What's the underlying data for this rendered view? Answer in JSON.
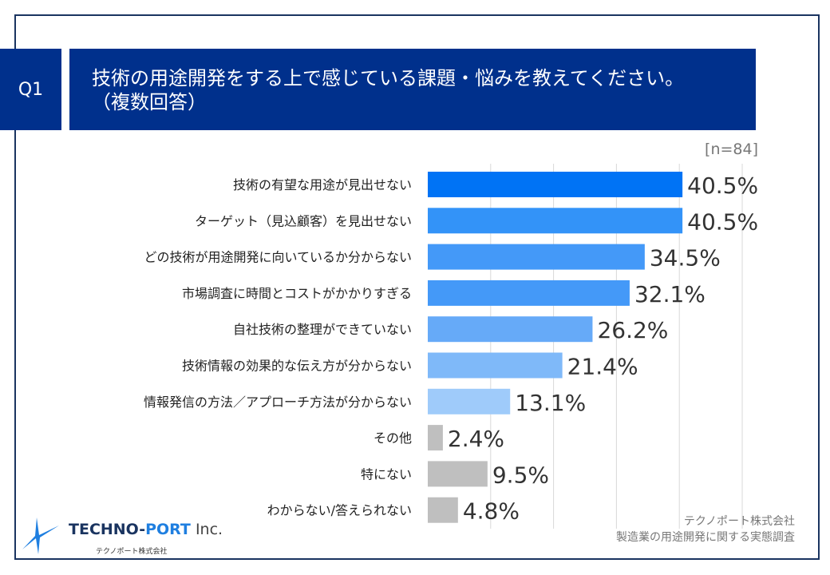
{
  "header": {
    "q_label": "Q1",
    "title_line1": "技術の用途開発をする上で感じている課題・悩みを教えてください。",
    "title_line2": "（複数回答）",
    "sample": "[n=84]"
  },
  "chart_data": {
    "type": "bar",
    "orientation": "horizontal",
    "xlim": [
      0,
      50
    ],
    "grid": true,
    "categories": [
      "技術の有望な用途が見出せない",
      "ターゲット（見込顧客）を見出せない",
      "どの技術が用途開発に向いているか分からない",
      "市場調査に時間とコストがかかりすぎる",
      "自社技術の整理ができていない",
      "技術情報の効果的な伝え方が分からない",
      "情報発信の方法／アプローチ方法が分からない",
      "その他",
      "特にない",
      "わからない/答えられない"
    ],
    "values": [
      40.5,
      40.5,
      34.5,
      32.1,
      26.2,
      21.4,
      13.1,
      2.4,
      9.5,
      4.8
    ],
    "labels": [
      "40.5%",
      "40.5%",
      "34.5%",
      "32.1%",
      "26.2%",
      "21.4%",
      "13.1%",
      "2.4%",
      "9.5%",
      "4.8%"
    ],
    "colors": [
      "#0073f5",
      "#3393f8",
      "#4499f8",
      "#4499f8",
      "#66aaf8",
      "#7fb9f9",
      "#9fcbfa",
      "#bfbfbf",
      "#bfbfbf",
      "#bfbfbf"
    ]
  },
  "footer": {
    "company": "テクノポート株式会社",
    "survey": "製造業の用途開発に関する実態調査"
  },
  "logo": {
    "name_a": "TECHNO-",
    "name_b": "PORT",
    "name_c": " Inc.",
    "sub": "テクノポート株式会社"
  }
}
